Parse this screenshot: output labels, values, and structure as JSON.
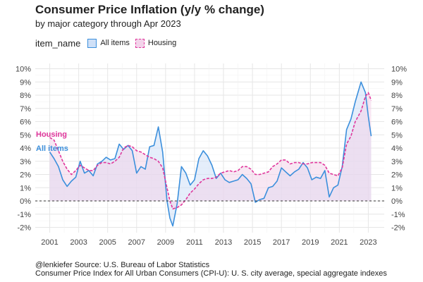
{
  "header": {
    "title": "Consumer Price Inflation (y/y % change)",
    "subtitle": "by major category through Apr 2023"
  },
  "legend": {
    "title": "item_name",
    "items": [
      {
        "label": "All items",
        "color": "#3b8fdc"
      },
      {
        "label": "Housing",
        "color": "#e0379c"
      }
    ]
  },
  "captions": {
    "source": "@lenkiefer Source: U.S. Bureau of Labor Statistics",
    "note": "Consumer Price Index for All Urban Consumers (CPI-U): U. S. city average, special aggregate indexes"
  },
  "chart_data": {
    "type": "area",
    "title": "Consumer Price Inflation (y/y % change)",
    "subtitle": "by major category through Apr 2023",
    "xlabel": "",
    "ylabel": "",
    "xlim": [
      2000.0,
      2024.1
    ],
    "ylim": [
      -2.4,
      10.4
    ],
    "x_ticks": [
      2001,
      2003,
      2005,
      2007,
      2009,
      2011,
      2013,
      2015,
      2017,
      2019,
      2021,
      2023
    ],
    "y_ticks": [
      -2,
      -1,
      0,
      1,
      2,
      3,
      4,
      5,
      6,
      7,
      8,
      9,
      10
    ],
    "y_tick_labels": [
      "-2%",
      "-1%",
      "0%",
      "1%",
      "2%",
      "3%",
      "4%",
      "5%",
      "6%",
      "7%",
      "8%",
      "9%",
      "10%"
    ],
    "x_tick_labels": [
      "2001",
      "2003",
      "2005",
      "2007",
      "2009",
      "2011",
      "2013",
      "2015",
      "2017",
      "2019",
      "2021",
      "2023"
    ],
    "series": [
      {
        "name": "All items",
        "color": "#3b8fdc",
        "fill": "#cfe0f7",
        "line_style": "solid",
        "label": "All items",
        "x": [
          2001.0,
          2001.3,
          2001.6,
          2001.9,
          2002.2,
          2002.5,
          2002.8,
          2003.1,
          2003.4,
          2003.7,
          2004.0,
          2004.3,
          2004.6,
          2004.9,
          2005.2,
          2005.5,
          2005.8,
          2006.1,
          2006.4,
          2006.7,
          2007.0,
          2007.3,
          2007.6,
          2007.9,
          2008.2,
          2008.5,
          2008.8,
          2009.1,
          2009.3,
          2009.5,
          2009.8,
          2010.1,
          2010.4,
          2010.7,
          2011.0,
          2011.3,
          2011.6,
          2011.9,
          2012.2,
          2012.5,
          2012.8,
          2013.1,
          2013.4,
          2013.7,
          2014.0,
          2014.3,
          2014.6,
          2014.9,
          2015.2,
          2015.5,
          2015.8,
          2016.1,
          2016.4,
          2016.7,
          2017.0,
          2017.3,
          2017.6,
          2017.9,
          2018.2,
          2018.5,
          2018.8,
          2019.1,
          2019.4,
          2019.7,
          2020.0,
          2020.3,
          2020.6,
          2020.9,
          2021.2,
          2021.5,
          2021.8,
          2022.1,
          2022.5,
          2022.8,
          2023.0,
          2023.2
        ],
        "values": [
          3.7,
          3.2,
          2.6,
          1.6,
          1.1,
          1.5,
          1.8,
          3.0,
          2.1,
          2.3,
          1.9,
          2.8,
          3.0,
          3.3,
          3.1,
          3.2,
          4.3,
          3.9,
          4.2,
          3.8,
          2.1,
          2.6,
          2.4,
          4.1,
          4.2,
          5.6,
          3.7,
          0.0,
          -1.3,
          -1.9,
          -0.2,
          2.6,
          2.1,
          1.2,
          1.6,
          3.2,
          3.8,
          3.4,
          2.7,
          1.7,
          2.1,
          1.6,
          1.4,
          1.5,
          1.6,
          2.0,
          1.7,
          1.3,
          -0.1,
          0.1,
          0.2,
          1.0,
          1.1,
          1.5,
          2.5,
          2.2,
          1.9,
          2.2,
          2.4,
          2.9,
          2.5,
          1.6,
          1.8,
          1.7,
          2.3,
          0.3,
          1.0,
          1.2,
          2.6,
          5.4,
          6.2,
          7.5,
          9.0,
          8.2,
          6.4,
          4.9
        ]
      },
      {
        "name": "Housing",
        "color": "#e0379c",
        "fill": "#f3d3ea",
        "line_style": "dashed",
        "label": "Housing",
        "x": [
          2001.0,
          2001.3,
          2001.6,
          2001.9,
          2002.2,
          2002.5,
          2002.8,
          2003.1,
          2003.4,
          2003.7,
          2004.0,
          2004.3,
          2004.6,
          2004.9,
          2005.2,
          2005.5,
          2005.8,
          2006.1,
          2006.4,
          2006.7,
          2007.0,
          2007.3,
          2007.6,
          2007.9,
          2008.2,
          2008.5,
          2008.8,
          2009.1,
          2009.3,
          2009.5,
          2009.8,
          2010.1,
          2010.4,
          2010.7,
          2011.0,
          2011.3,
          2011.6,
          2011.9,
          2012.2,
          2012.5,
          2012.8,
          2013.1,
          2013.4,
          2013.7,
          2014.0,
          2014.3,
          2014.6,
          2014.9,
          2015.2,
          2015.5,
          2015.8,
          2016.1,
          2016.4,
          2016.7,
          2017.0,
          2017.3,
          2017.6,
          2017.9,
          2018.2,
          2018.5,
          2018.8,
          2019.1,
          2019.4,
          2019.7,
          2020.0,
          2020.3,
          2020.6,
          2020.9,
          2021.2,
          2021.5,
          2021.8,
          2022.1,
          2022.5,
          2022.8,
          2023.0,
          2023.2
        ],
        "values": [
          4.8,
          4.6,
          3.8,
          3.0,
          2.4,
          2.0,
          2.3,
          2.7,
          2.5,
          2.3,
          2.3,
          2.7,
          2.9,
          2.9,
          2.8,
          3.0,
          3.3,
          4.0,
          4.2,
          4.1,
          3.8,
          3.7,
          3.5,
          3.3,
          3.2,
          3.0,
          2.5,
          1.0,
          0.0,
          -0.6,
          -0.5,
          -0.3,
          0.1,
          0.6,
          0.9,
          1.3,
          1.6,
          1.7,
          1.7,
          1.8,
          2.1,
          2.2,
          2.3,
          2.2,
          2.3,
          2.6,
          2.6,
          2.4,
          2.0,
          2.0,
          2.1,
          2.2,
          2.6,
          2.8,
          3.1,
          3.1,
          2.8,
          2.9,
          2.9,
          2.8,
          2.8,
          2.9,
          2.9,
          2.9,
          2.7,
          2.1,
          2.0,
          1.9,
          2.5,
          4.3,
          4.9,
          6.0,
          6.8,
          7.9,
          8.2,
          7.6
        ]
      }
    ],
    "reference_line": {
      "y": 0,
      "style": "dashed"
    }
  }
}
